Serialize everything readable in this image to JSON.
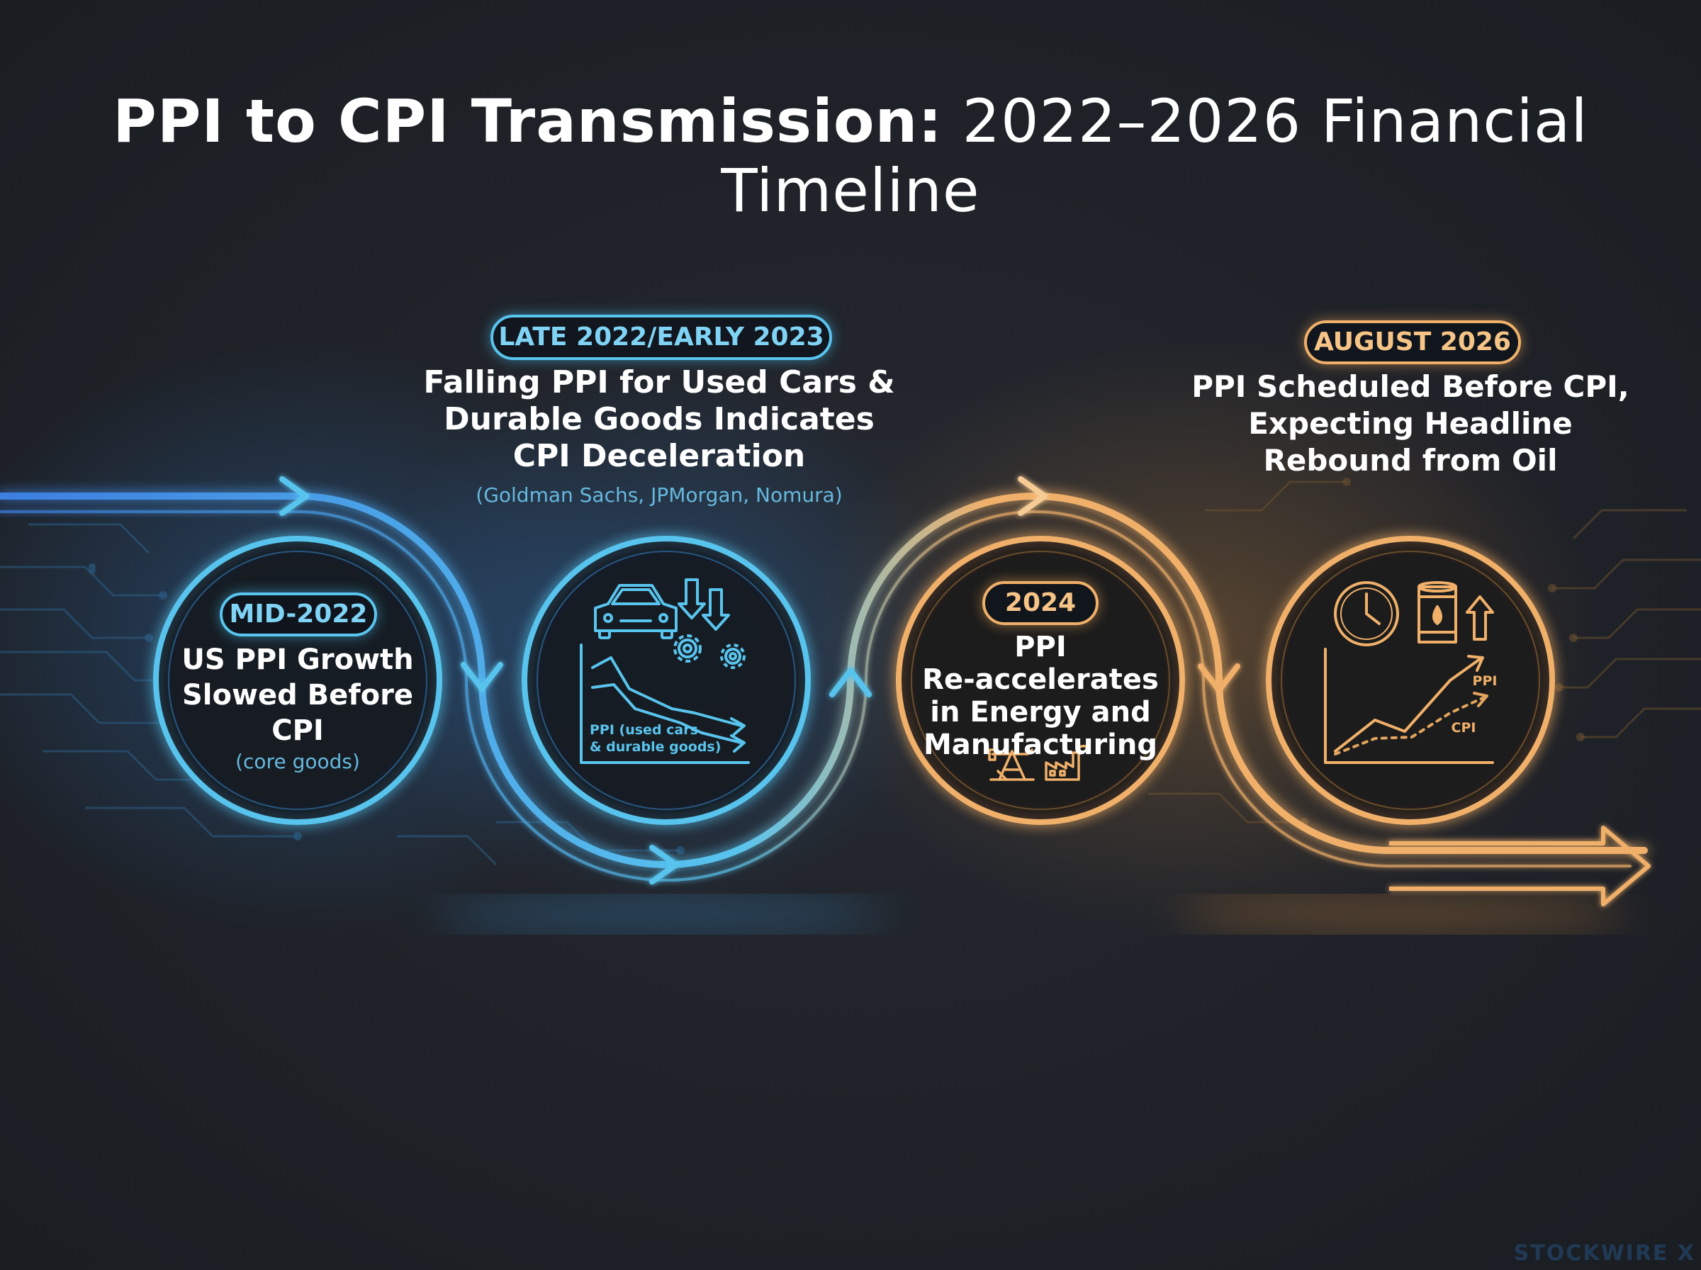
{
  "title": {
    "bold": "PPI to CPI Transmission:",
    "light": "2022–2026 Financial Timeline"
  },
  "events": [
    {
      "date": "MID-2022",
      "headline_lines": [
        "US PPI Growth",
        "Slowed Before",
        "CPI"
      ],
      "note": "(core goods)",
      "color": "#59c4ee"
    },
    {
      "date": "LATE 2022/EARLY 2023",
      "headline_lines": [
        "Falling PPI for Used Cars &",
        "Durable Goods Indicates",
        "CPI Deceleration"
      ],
      "note": "(Goldman Sachs, JPMorgan, Nomura)",
      "icon_chart_label_lines": [
        "PPI (used cars",
        "& durable goods)"
      ],
      "icons": [
        "car-icon",
        "down-arrows-icon",
        "gears-icon",
        "falling-chart-icon"
      ],
      "color": "#59c4ee"
    },
    {
      "date": "2024",
      "headline_lines": [
        "PPI",
        "Re-accelerates",
        "in Energy and",
        "Manufacturing"
      ],
      "icons": [
        "oil-pump-icon",
        "factory-icon"
      ],
      "color": "#f0b06a"
    },
    {
      "date": "AUGUST 2026",
      "headline_lines": [
        "PPI Scheduled Before CPI,",
        "Expecting Headline",
        "Rebound from Oil"
      ],
      "icons": [
        "clock-icon",
        "oil-barrel-icon",
        "up-arrow-icon",
        "rising-chart-icon"
      ],
      "chart_series_labels": [
        "PPI",
        "CPI"
      ],
      "color": "#f0b06a"
    }
  ],
  "colors": {
    "blue": "#59c4ee",
    "deep_blue": "#3d7fe0",
    "orange": "#f0b06a",
    "background": "#1f2228"
  },
  "watermark": "STOCKWIRE X"
}
